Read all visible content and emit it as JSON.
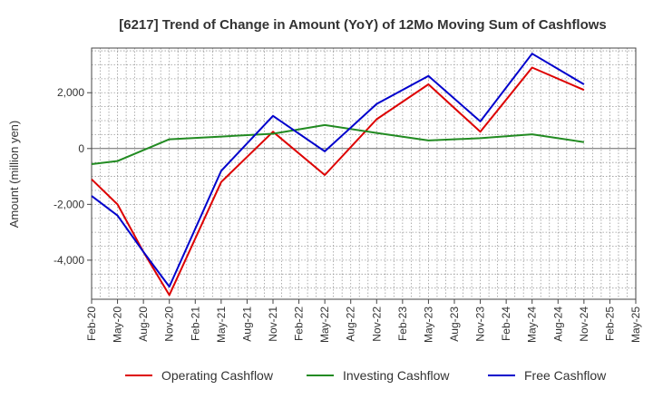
{
  "chart_data": {
    "type": "line",
    "title": "[6217]  Trend of Change in Amount (YoY) of 12Mo Moving Sum of Cashflows",
    "xlabel": "",
    "ylabel": "Amount (million yen)",
    "ylim": [
      -5400,
      3600
    ],
    "yticks": [
      2000,
      0,
      -2000,
      -4000
    ],
    "ytick_labels": [
      "2,000",
      "0",
      "-2,000",
      "-4,000"
    ],
    "grid": true,
    "legend_position": "bottom",
    "x": [
      "Feb-20",
      "May-20",
      "Aug-20",
      "Nov-20",
      "Feb-21",
      "May-21",
      "Aug-21",
      "Nov-21",
      "Feb-22",
      "May-22",
      "Aug-22",
      "Nov-22",
      "Feb-23",
      "May-23",
      "Aug-23",
      "Nov-23",
      "Feb-24",
      "May-24",
      "Aug-24",
      "Nov-24",
      "Feb-25",
      "May-25"
    ],
    "series": [
      {
        "name": "Operating Cashflow",
        "color": "#dd0000",
        "values": [
          -1100,
          -2000,
          -3700,
          -5250,
          null,
          -1200,
          null,
          600,
          null,
          -950,
          null,
          1050,
          null,
          2300,
          null,
          600,
          null,
          2900,
          null,
          2100,
          null,
          null
        ]
      },
      {
        "name": "Investing Cashflow",
        "color": "#228b22",
        "values": [
          -560,
          -450,
          null,
          330,
          null,
          430,
          null,
          530,
          null,
          840,
          null,
          560,
          null,
          290,
          null,
          370,
          null,
          510,
          null,
          230,
          null,
          null
        ]
      },
      {
        "name": "Free Cashflow",
        "color": "#0000cc",
        "values": [
          -1700,
          -2400,
          -3700,
          -4950,
          null,
          -800,
          null,
          1170,
          null,
          -100,
          null,
          1600,
          null,
          2600,
          null,
          970,
          null,
          3400,
          null,
          2300,
          null,
          null
        ]
      }
    ]
  }
}
